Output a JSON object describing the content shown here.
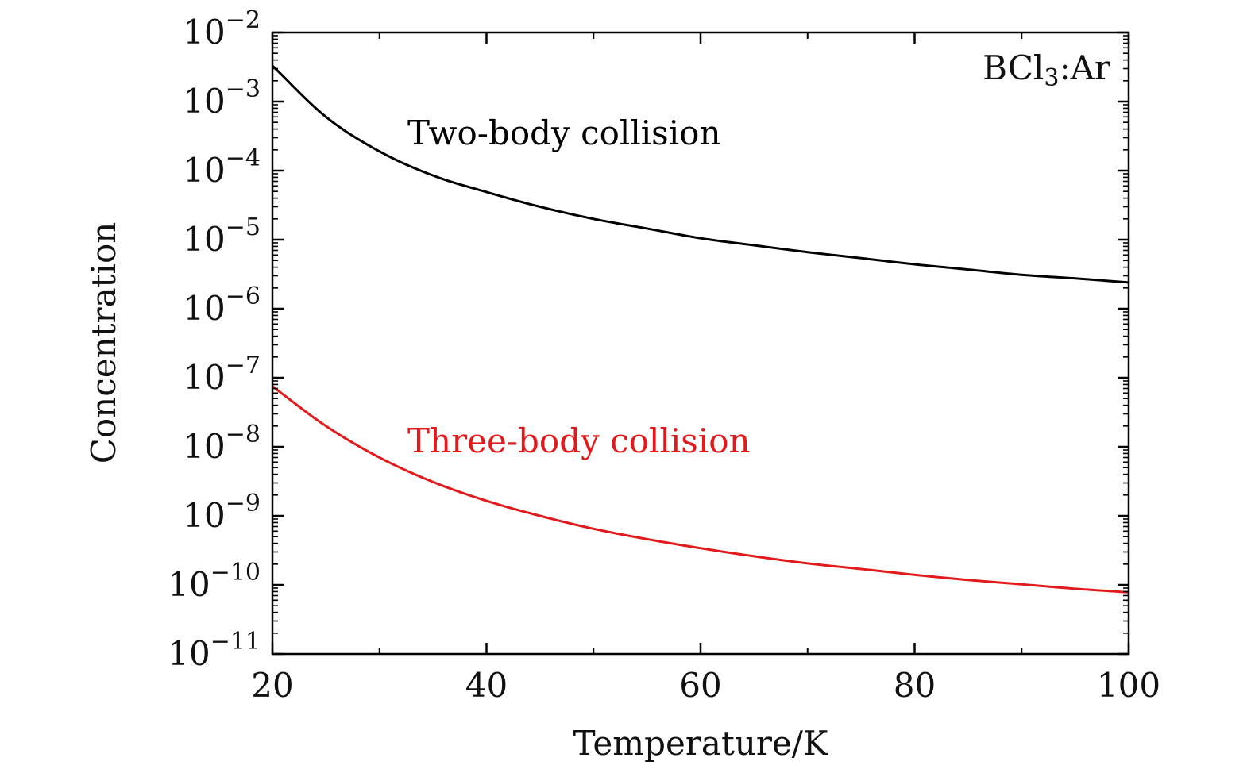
{
  "chart_data": {
    "type": "line",
    "xlabel": "Temperature/K",
    "ylabel": "Concentration",
    "xlim": [
      20,
      100
    ],
    "ylim_log10": [
      -11,
      -2
    ],
    "y_scale": "log",
    "grid": false,
    "x_ticks": [
      20,
      40,
      60,
      80,
      100
    ],
    "x_tick_labels": [
      "20",
      "40",
      "60",
      "80",
      "100"
    ],
    "y_ticks_log10": [
      -2,
      -3,
      -4,
      -5,
      -6,
      -7,
      -8,
      -9,
      -10,
      -11
    ],
    "y_tick_base": "10",
    "y_tick_exponents": [
      "−2",
      "−3",
      "−4",
      "−5",
      "−6",
      "−7",
      "−8",
      "−9",
      "−10",
      "−11"
    ],
    "annotations": {
      "system_main": "BCl",
      "system_sub": "3",
      "system_rest": ":Ar",
      "two_body": "Two-body collision",
      "three_body": "Three-body collision"
    },
    "colors": {
      "two_body": "#000000",
      "three_body": "#e31a1c"
    },
    "series": [
      {
        "key": "two_body",
        "x": [
          20,
          25,
          30,
          35,
          40,
          45,
          50,
          55,
          60,
          65,
          70,
          75,
          80,
          85,
          90,
          95,
          100
        ],
        "y": [
          0.0033,
          0.0006,
          0.00019,
          8.5e-05,
          4.9e-05,
          3e-05,
          2e-05,
          1.45e-05,
          1.05e-05,
          8.3e-06,
          6.6e-06,
          5.4e-06,
          4.4e-06,
          3.7e-06,
          3.1e-06,
          2.75e-06,
          2.4e-06
        ]
      },
      {
        "key": "three_body",
        "x": [
          20,
          25,
          30,
          35,
          40,
          45,
          50,
          55,
          60,
          65,
          70,
          75,
          80,
          85,
          90,
          95,
          100
        ],
        "y": [
          7.5e-08,
          2e-08,
          7e-09,
          3.1e-09,
          1.65e-09,
          1e-09,
          6.5e-10,
          4.6e-10,
          3.4e-10,
          2.6e-10,
          2.05e-10,
          1.7e-10,
          1.4e-10,
          1.18e-10,
          1.02e-10,
          8.8e-11,
          7.8e-11
        ]
      }
    ]
  }
}
